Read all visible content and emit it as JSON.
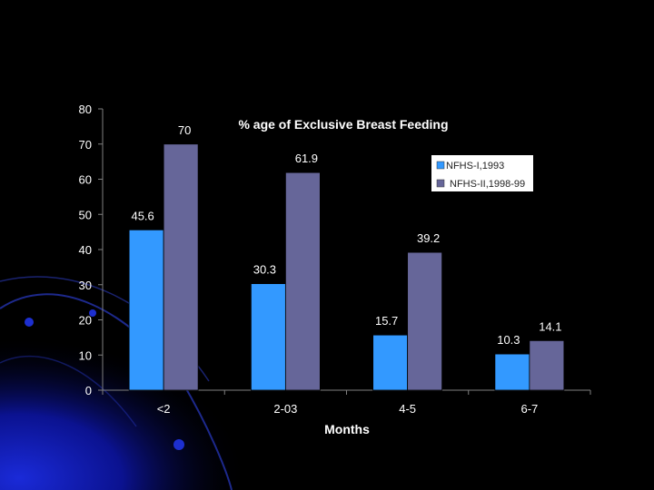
{
  "colors": {
    "background": "#000000",
    "series1": "#3399ff",
    "series2": "#666699",
    "axis": "#808080",
    "text": "#ffffff"
  },
  "chart_data": {
    "type": "bar",
    "title": "% age of Exclusive Breast Feeding",
    "xlabel": "Months",
    "ylabel": "",
    "categories": [
      "<2",
      "2-03",
      "4-5",
      "6-7"
    ],
    "series": [
      {
        "name": "NFHS-I,1993",
        "values": [
          45.6,
          30.3,
          15.7,
          10.3
        ]
      },
      {
        "name": "NFHS-II,1998-99",
        "values": [
          70,
          61.9,
          39.2,
          14.1
        ]
      }
    ],
    "ylim": [
      0,
      80
    ],
    "yticks": [
      0,
      10,
      20,
      30,
      40,
      50,
      60,
      70,
      80
    ],
    "data_labels": [
      [
        "45.6",
        "30.3",
        "15.7",
        "10.3"
      ],
      [
        "70",
        "61.9",
        "39.2",
        "14.1"
      ]
    ],
    "grid": false,
    "legend_position": "top-right"
  }
}
